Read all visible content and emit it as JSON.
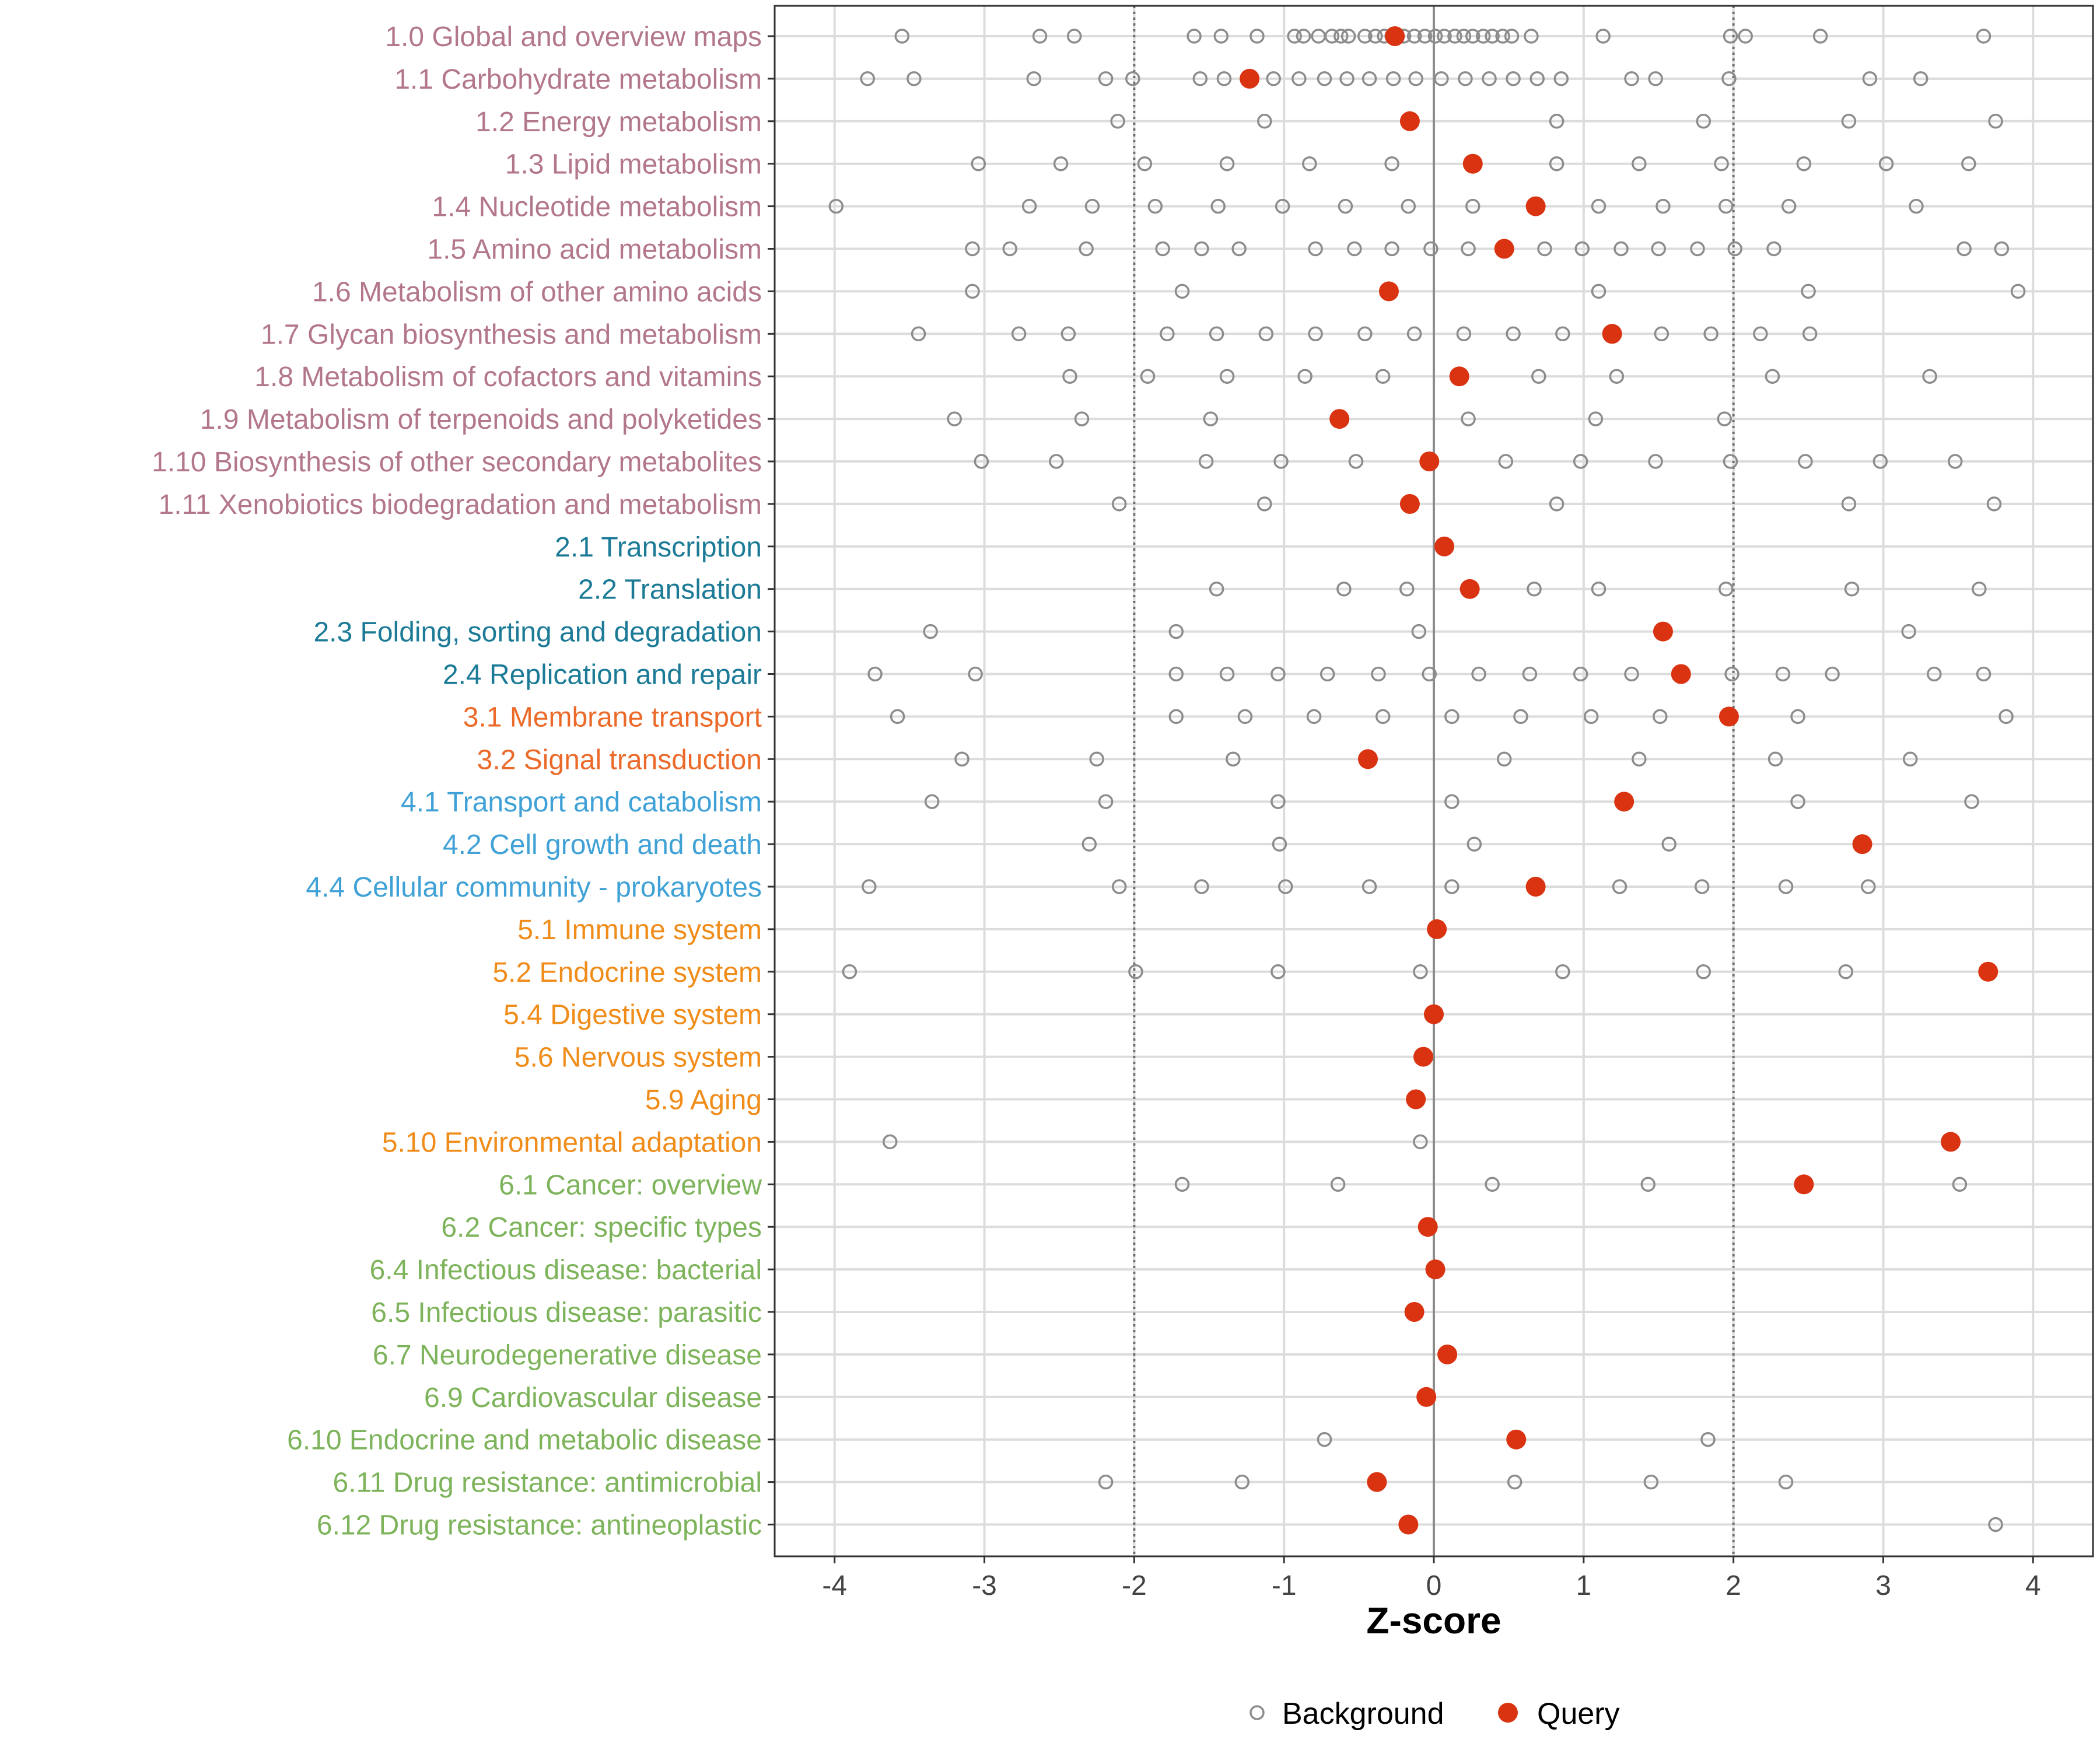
{
  "chart_data": {
    "type": "scatter",
    "xlabel": "Z-score",
    "xlim": [
      -4.4,
      4.4
    ],
    "x_ticks": [
      -4,
      -3,
      -2,
      -1,
      0,
      1,
      2,
      3,
      4
    ],
    "x_tick_labels": [
      "-4",
      "-3",
      "-2",
      "-1",
      "0",
      "1",
      "2",
      "3",
      "4"
    ],
    "reference_lines": {
      "dotted": [
        -2,
        2
      ],
      "solid": [
        0
      ]
    },
    "legend": [
      {
        "name": "Background",
        "marker": "open-circle",
        "color": "#8c8c8c"
      },
      {
        "name": "Query",
        "marker": "filled-circle",
        "color": "#d93311"
      }
    ],
    "group_colors": {
      "1": "#b3778c",
      "2": "#1b7a96",
      "3": "#eb6a2a",
      "4": "#3fa1d6",
      "5": "#f08c1a",
      "6": "#7db35a"
    },
    "categories": [
      {
        "label": "1.0 Global and overview maps",
        "group": "1",
        "query": -0.26,
        "background": [
          -3.55,
          -2.63,
          -2.4,
          -1.6,
          -1.42,
          -1.18,
          -0.93,
          -0.87,
          -0.77,
          -0.68,
          -0.62,
          -0.57,
          -0.46,
          -0.39,
          -0.33,
          -0.28,
          -0.2,
          -0.13,
          -0.06,
          0.01,
          0.07,
          0.14,
          0.2,
          0.26,
          0.33,
          0.39,
          0.46,
          0.52,
          0.65,
          1.13,
          1.98,
          2.08,
          2.58,
          3.67
        ]
      },
      {
        "label": "1.1 Carbohydrate metabolism",
        "group": "1",
        "query": -1.23,
        "background": [
          -3.78,
          -3.47,
          -2.67,
          -2.19,
          -2.01,
          -1.56,
          -1.4,
          -1.07,
          -0.9,
          -0.73,
          -0.58,
          -0.43,
          -0.27,
          -0.12,
          0.05,
          0.21,
          0.37,
          0.53,
          0.69,
          0.85,
          1.32,
          1.48,
          1.97,
          2.91,
          3.25
        ]
      },
      {
        "label": "1.2 Energy metabolism",
        "group": "1",
        "query": -0.16,
        "background": [
          -2.11,
          -1.13,
          0.82,
          1.8,
          2.77,
          3.75
        ]
      },
      {
        "label": "1.3 Lipid metabolism",
        "group": "1",
        "query": 0.26,
        "background": [
          -3.04,
          -2.49,
          -1.93,
          -1.38,
          -0.83,
          -0.28,
          0.82,
          1.37,
          1.92,
          2.47,
          3.02,
          3.57
        ]
      },
      {
        "label": "1.4 Nucleotide metabolism",
        "group": "1",
        "query": 0.68,
        "background": [
          -3.99,
          -2.7,
          -2.28,
          -1.86,
          -1.44,
          -1.01,
          -0.59,
          -0.17,
          0.26,
          1.1,
          1.53,
          1.95,
          2.37,
          3.22
        ]
      },
      {
        "label": "1.5 Amino acid metabolism",
        "group": "1",
        "query": 0.47,
        "background": [
          -3.08,
          -2.83,
          -2.32,
          -1.81,
          -1.55,
          -1.3,
          -0.79,
          -0.53,
          -0.28,
          -0.02,
          0.23,
          0.74,
          0.99,
          1.25,
          1.5,
          1.76,
          2.01,
          2.27,
          3.54,
          3.79
        ]
      },
      {
        "label": "1.6 Metabolism of other amino acids",
        "group": "1",
        "query": -0.3,
        "background": [
          -3.08,
          -1.68,
          1.1,
          2.5,
          3.9
        ]
      },
      {
        "label": "1.7 Glycan biosynthesis and metabolism",
        "group": "1",
        "query": 1.19,
        "background": [
          -3.44,
          -2.77,
          -2.44,
          -1.78,
          -1.45,
          -1.12,
          -0.79,
          -0.46,
          -0.13,
          0.2,
          0.53,
          0.86,
          1.52,
          1.85,
          2.18,
          2.51
        ]
      },
      {
        "label": "1.8 Metabolism of cofactors and vitamins",
        "group": "1",
        "query": 0.17,
        "background": [
          -2.43,
          -1.91,
          -1.38,
          -0.86,
          -0.34,
          0.7,
          1.22,
          2.26,
          3.31
        ]
      },
      {
        "label": "1.9 Metabolism of terpenoids and polyketides",
        "group": "1",
        "query": -0.63,
        "background": [
          -3.2,
          -2.35,
          -1.49,
          0.23,
          1.08,
          1.94
        ]
      },
      {
        "label": "1.10 Biosynthesis of other secondary metabolites",
        "group": "1",
        "query": -0.03,
        "background": [
          -3.02,
          -2.52,
          -1.52,
          -1.02,
          -0.52,
          0.48,
          0.98,
          1.48,
          1.98,
          2.48,
          2.98,
          3.48
        ]
      },
      {
        "label": "1.11 Xenobiotics biodegradation and metabolism",
        "group": "1",
        "query": -0.16,
        "background": [
          -2.1,
          -1.13,
          0.82,
          2.77,
          3.74
        ]
      },
      {
        "label": "2.1 Transcription",
        "group": "2",
        "query": 0.07,
        "background": []
      },
      {
        "label": "2.2 Translation",
        "group": "2",
        "query": 0.24,
        "background": [
          -1.45,
          -0.6,
          -0.18,
          0.67,
          1.1,
          1.95,
          2.79,
          3.64
        ]
      },
      {
        "label": "2.3 Folding, sorting and degradation",
        "group": "2",
        "query": 1.53,
        "background": [
          -3.36,
          -1.72,
          -0.1,
          3.17
        ]
      },
      {
        "label": "2.4 Replication and repair",
        "group": "2",
        "query": 1.65,
        "background": [
          -3.73,
          -3.06,
          -1.72,
          -1.38,
          -1.04,
          -0.71,
          -0.37,
          -0.03,
          0.3,
          0.64,
          0.98,
          1.32,
          1.99,
          2.33,
          2.66,
          3.34,
          3.67
        ]
      },
      {
        "label": "3.1 Membrane transport",
        "group": "3",
        "query": 1.97,
        "background": [
          -3.58,
          -1.72,
          -1.26,
          -0.8,
          -0.34,
          0.12,
          0.58,
          1.05,
          1.51,
          2.43,
          3.82
        ]
      },
      {
        "label": "3.2 Signal transduction",
        "group": "3",
        "query": -0.44,
        "background": [
          -3.15,
          -2.25,
          -1.34,
          0.47,
          1.37,
          2.28,
          3.18
        ]
      },
      {
        "label": "4.1 Transport and catabolism",
        "group": "4",
        "query": 1.27,
        "background": [
          -3.35,
          -2.19,
          -1.04,
          0.12,
          2.43,
          3.59
        ]
      },
      {
        "label": "4.2 Cell growth and death",
        "group": "4",
        "query": 2.86,
        "background": [
          -2.3,
          -1.03,
          0.27,
          1.57
        ]
      },
      {
        "label": "4.4 Cellular community - prokaryotes",
        "group": "4",
        "query": 0.68,
        "background": [
          -3.77,
          -2.1,
          -1.55,
          -0.99,
          -0.43,
          0.12,
          1.24,
          1.79,
          2.35,
          2.9
        ]
      },
      {
        "label": "5.1 Immune system",
        "group": "5",
        "query": 0.02,
        "background": []
      },
      {
        "label": "5.2 Endocrine system",
        "group": "5",
        "query": 3.7,
        "background": [
          -3.9,
          -1.99,
          -1.04,
          -0.09,
          0.86,
          1.8,
          2.75
        ]
      },
      {
        "label": "5.4 Digestive system",
        "group": "5",
        "query": 0.0,
        "background": []
      },
      {
        "label": "5.6 Nervous system",
        "group": "5",
        "query": -0.07,
        "background": []
      },
      {
        "label": "5.9 Aging",
        "group": "5",
        "query": -0.12,
        "background": []
      },
      {
        "label": "5.10 Environmental adaptation",
        "group": "5",
        "query": 3.45,
        "background": [
          -3.63,
          -0.09
        ]
      },
      {
        "label": "6.1 Cancer: overview",
        "group": "6",
        "query": 2.47,
        "background": [
          -1.68,
          -0.64,
          0.39,
          1.43,
          3.51
        ]
      },
      {
        "label": "6.2 Cancer: specific types",
        "group": "6",
        "query": -0.04,
        "background": []
      },
      {
        "label": "6.4 Infectious disease: bacterial",
        "group": "6",
        "query": 0.01,
        "background": []
      },
      {
        "label": "6.5 Infectious disease: parasitic",
        "group": "6",
        "query": -0.13,
        "background": []
      },
      {
        "label": "6.7 Neurodegenerative disease",
        "group": "6",
        "query": 0.09,
        "background": []
      },
      {
        "label": "6.9 Cardiovascular disease",
        "group": "6",
        "query": -0.05,
        "background": []
      },
      {
        "label": "6.10 Endocrine and metabolic disease",
        "group": "6",
        "query": 0.55,
        "background": [
          -0.73,
          1.83
        ]
      },
      {
        "label": "6.11 Drug resistance: antimicrobial",
        "group": "6",
        "query": -0.38,
        "background": [
          -2.19,
          -1.28,
          0.54,
          1.45,
          2.35
        ]
      },
      {
        "label": "6.12 Drug resistance: antineoplastic",
        "group": "6",
        "query": -0.17,
        "background": [
          3.75
        ]
      }
    ]
  }
}
